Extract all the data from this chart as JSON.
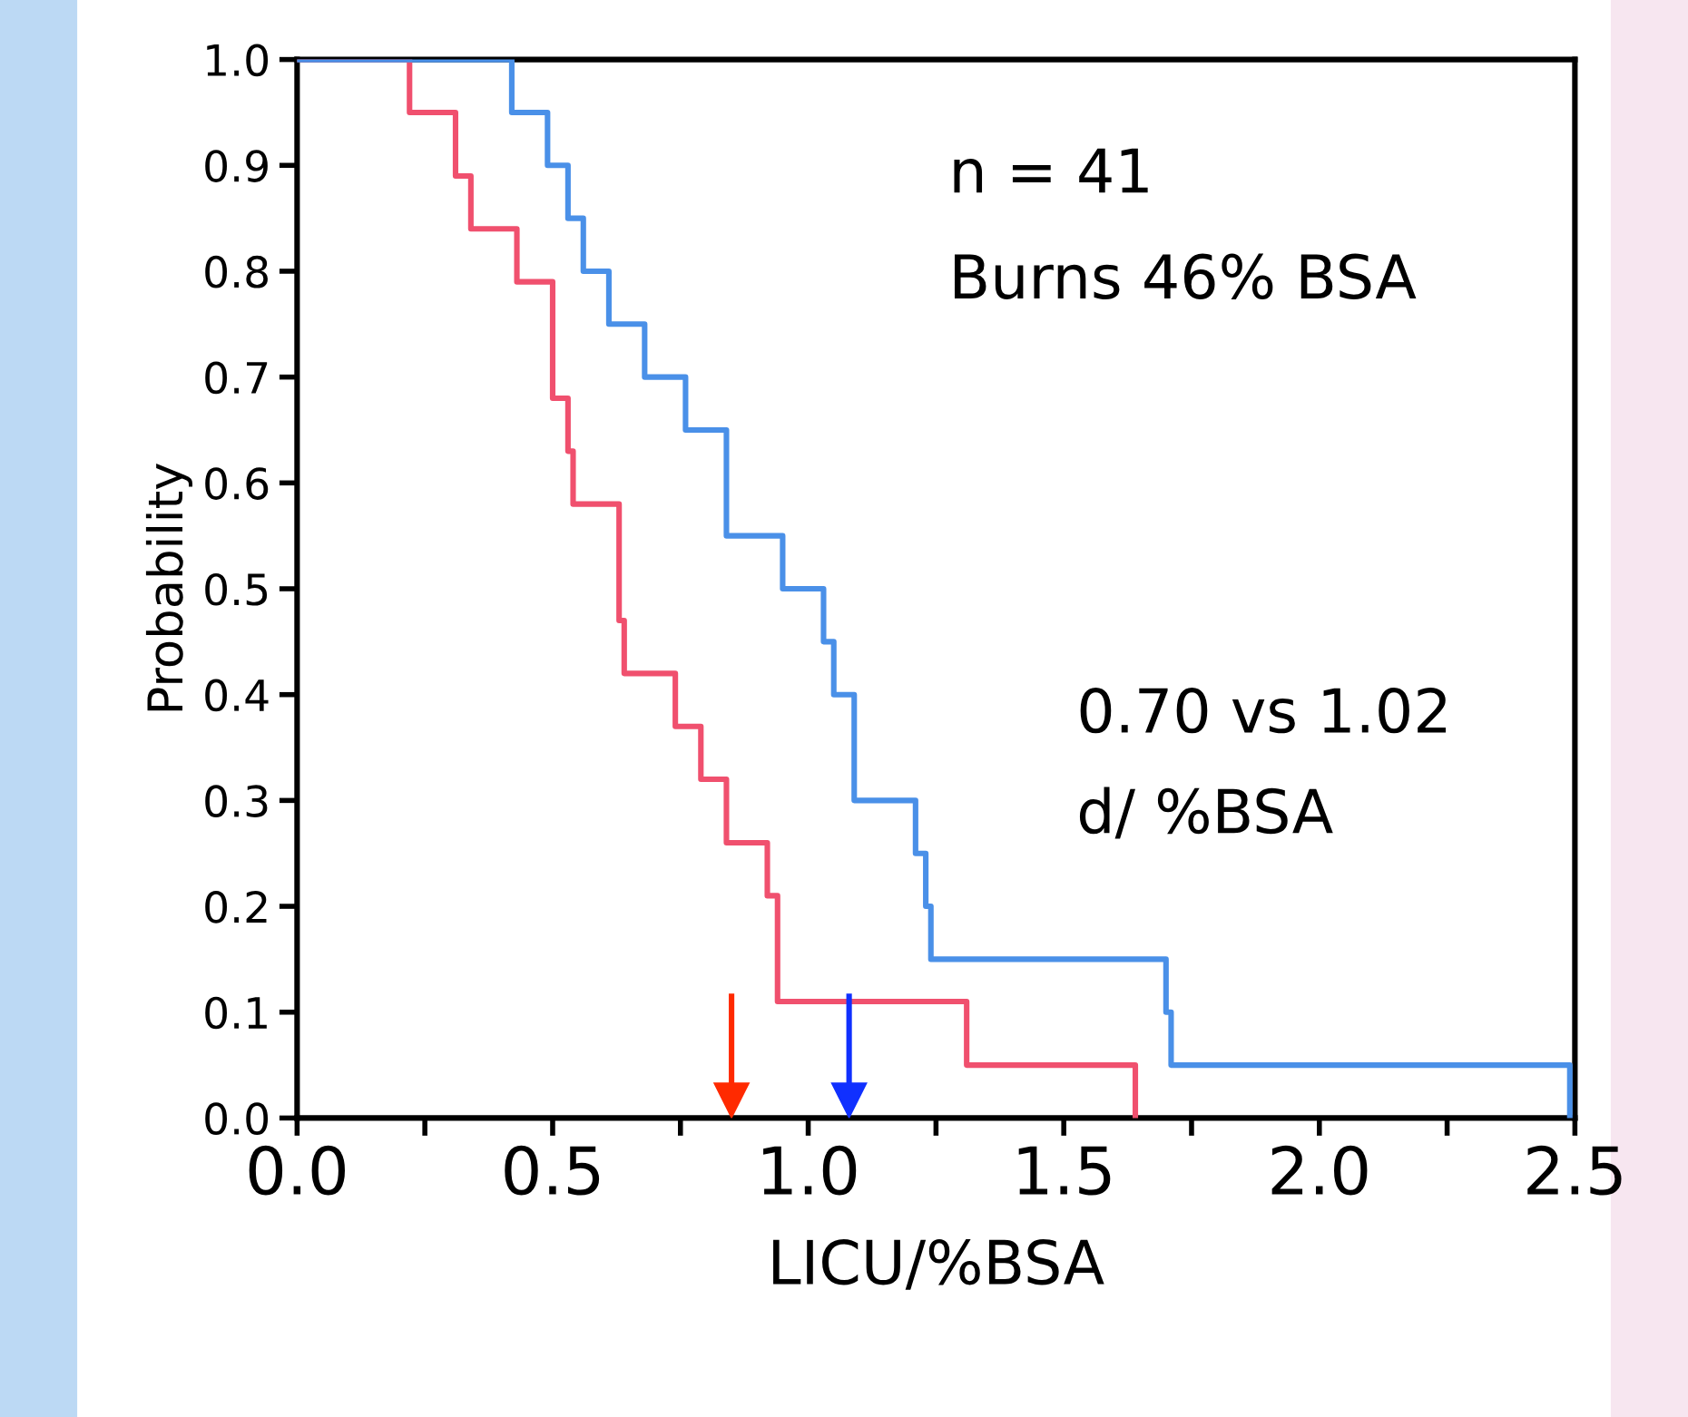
{
  "chart_data": {
    "type": "step",
    "xlabel": "LICU/%BSA",
    "ylabel": "Probability",
    "series": [
      {
        "color": "#f0506e",
        "x": [
          0,
          0.22,
          0.31,
          0.34,
          0.43,
          0.5,
          0.53,
          0.54,
          0.63,
          0.64,
          0.74,
          0.79,
          0.84,
          0.92,
          0.94,
          1.31,
          1.64
        ],
        "values": [
          1.0,
          0.95,
          0.89,
          0.84,
          0.79,
          0.68,
          0.63,
          0.58,
          0.47,
          0.42,
          0.37,
          0.32,
          0.26,
          0.21,
          0.11,
          0.05,
          0.0
        ]
      },
      {
        "color": "#4a90e8",
        "x": [
          0,
          0.42,
          0.49,
          0.53,
          0.56,
          0.61,
          0.68,
          0.76,
          0.84,
          0.95,
          1.03,
          1.05,
          1.09,
          1.21,
          1.23,
          1.24,
          1.7,
          1.71,
          2.49
        ],
        "values": [
          1.0,
          0.95,
          0.9,
          0.85,
          0.8,
          0.75,
          0.7,
          0.65,
          0.55,
          0.5,
          0.45,
          0.4,
          0.3,
          0.25,
          0.2,
          0.15,
          0.1,
          0.05,
          0.0
        ]
      }
    ],
    "xlim": [
      0,
      2.5
    ],
    "xticks": [
      {
        "value": 0,
        "label": "0.0"
      },
      {
        "value": 0.25,
        "label": null
      },
      {
        "value": 0.5,
        "label": "0.5"
      },
      {
        "value": 0.75,
        "label": null
      },
      {
        "value": 1,
        "label": "1.0"
      },
      {
        "value": 1.25,
        "label": null
      },
      {
        "value": 1.5,
        "label": "1.5"
      },
      {
        "value": 1.75,
        "label": null
      },
      {
        "value": 2,
        "label": "2.0"
      },
      {
        "value": 2.25,
        "label": null
      },
      {
        "value": 2.5,
        "label": "2.5"
      }
    ],
    "ylim": [
      0,
      1
    ],
    "yticks": [
      {
        "value": 0,
        "label": "0.0"
      },
      {
        "value": 0.1,
        "label": "0.1"
      },
      {
        "value": 0.2,
        "label": "0.2"
      },
      {
        "value": 0.3,
        "label": "0.3"
      },
      {
        "value": 0.4,
        "label": "0.4"
      },
      {
        "value": 0.5,
        "label": "0.5"
      },
      {
        "value": 0.6,
        "label": "0.6"
      },
      {
        "value": 0.7,
        "label": "0.7"
      },
      {
        "value": 0.8,
        "label": "0.8"
      },
      {
        "value": 0.9,
        "label": "0.9"
      },
      {
        "value": 1,
        "label": "1.0"
      }
    ],
    "ref_lines": [
      {
        "axis": "x",
        "value": 0.85,
        "color": "#ff2a00"
      },
      {
        "axis": "x",
        "value": 1.08,
        "color": "#1030ff"
      }
    ],
    "annotations": [
      "n = 41",
      "Burns 46% BSA",
      "0.70 vs 1.02",
      "d/ %BSA"
    ],
    "grid": false,
    "legend": false,
    "marker": "none",
    "line_style": "solid"
  }
}
